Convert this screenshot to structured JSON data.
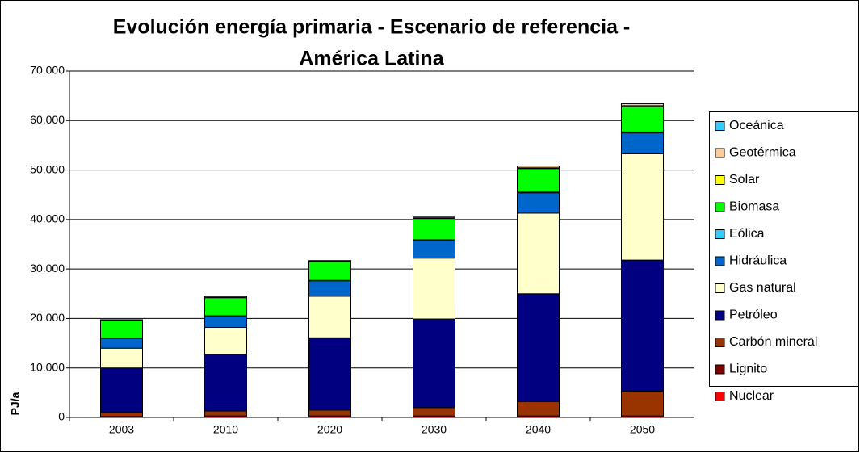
{
  "chart_data": {
    "type": "bar",
    "stacked": true,
    "title": "Evolución energía primaria - Escenario de referencia - América Latina",
    "title_lines": [
      "Evolución energía primaria - Escenario de referencia -",
      "América Latina"
    ],
    "ylabel": "PJ/a",
    "categories": [
      "2003",
      "2010",
      "2020",
      "2030",
      "2040",
      "2050"
    ],
    "ylim": [
      0,
      70000
    ],
    "yticks": [
      0,
      {
        "value": 10000,
        "label": "10.000"
      },
      {
        "value": 20000,
        "label": "20.000"
      },
      {
        "value": 30000,
        "label": "30.000"
      },
      {
        "value": 40000,
        "label": "40.000"
      },
      {
        "value": 50000,
        "label": "50.000"
      },
      {
        "value": 60000,
        "label": "60.000"
      },
      {
        "value": 70000,
        "label": "70.000"
      }
    ],
    "grid": true,
    "legend": "right",
    "series": [
      {
        "name": "Nuclear",
        "color": "#ff0000",
        "values": [
          200,
          300,
          300,
          300,
          300,
          300
        ]
      },
      {
        "name": "Lignito",
        "color": "#800000",
        "values": [
          0,
          0,
          0,
          0,
          0,
          0
        ]
      },
      {
        "name": "Carbón mineral",
        "color": "#993300",
        "values": [
          800,
          1000,
          1200,
          1700,
          2900,
          5000
        ]
      },
      {
        "name": "Petróleo",
        "color": "#000080",
        "values": [
          9000,
          11500,
          14600,
          17900,
          21800,
          26500
        ]
      },
      {
        "name": "Gas natural",
        "color": "#ffffcc",
        "values": [
          4000,
          5400,
          8400,
          12300,
          16300,
          21500
        ]
      },
      {
        "name": "Hidráulica",
        "color": "#0066cc",
        "values": [
          2000,
          2300,
          3100,
          3600,
          4100,
          4200
        ]
      },
      {
        "name": "Eólica",
        "color": "#33ccff",
        "values": [
          0,
          50,
          100,
          100,
          150,
          200
        ]
      },
      {
        "name": "Biomasa",
        "color": "#00ff00",
        "values": [
          3700,
          3650,
          3800,
          4300,
          4750,
          5100
        ]
      },
      {
        "name": "Solar",
        "color": "#ffff00",
        "values": [
          0,
          50,
          50,
          100,
          150,
          200
        ]
      },
      {
        "name": "Geotérmica",
        "color": "#ffcc99",
        "values": [
          50,
          200,
          150,
          200,
          350,
          400
        ]
      },
      {
        "name": "Oceánica",
        "color": "#33ccff",
        "values": [
          0,
          0,
          0,
          0,
          0,
          0
        ]
      }
    ]
  }
}
